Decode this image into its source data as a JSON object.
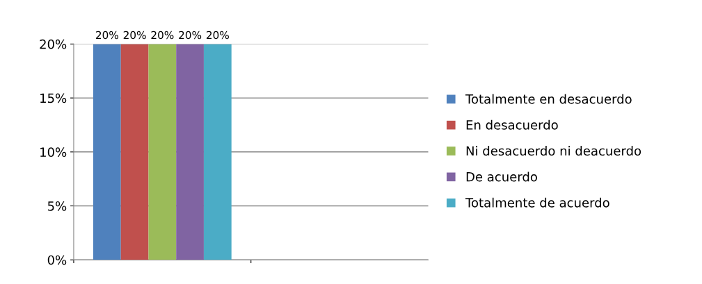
{
  "chart_data": {
    "type": "bar",
    "categories": [
      null,
      null
    ],
    "series": [
      {
        "name": "Totalmente en desacuerdo",
        "color": "#4f81bd",
        "values": [
          20,
          null
        ],
        "value_labels": [
          "20%",
          null
        ]
      },
      {
        "name": "En desacuerdo",
        "color": "#c0504d",
        "values": [
          20,
          null
        ],
        "value_labels": [
          "20%",
          null
        ]
      },
      {
        "name": "Ni desacuerdo ni deacuerdo",
        "color": "#9bbb59",
        "values": [
          20,
          null
        ],
        "value_labels": [
          "20%",
          null
        ]
      },
      {
        "name": "De acuerdo",
        "color": "#8064a2",
        "values": [
          20,
          null
        ],
        "value_labels": [
          "20%",
          null
        ]
      },
      {
        "name": "Totalmente de acuerdo",
        "color": "#4bacc6",
        "values": [
          20,
          null
        ],
        "value_labels": [
          "20%",
          null
        ]
      }
    ],
    "ylim": [
      0,
      20
    ],
    "yticks": [
      {
        "value": 0,
        "label": "0%"
      },
      {
        "value": 5,
        "label": "5%"
      },
      {
        "value": 10,
        "label": "10%"
      },
      {
        "value": 15,
        "label": "15%"
      },
      {
        "value": 20,
        "label": "20%"
      }
    ],
    "grid": "y",
    "legend": "right"
  }
}
